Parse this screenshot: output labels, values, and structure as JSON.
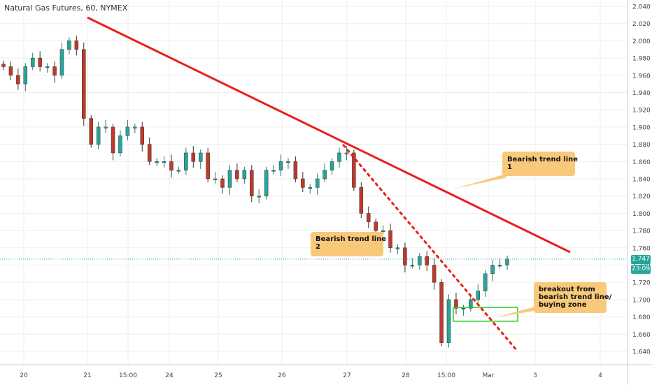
{
  "chart_title": "Natural Gas Futures, 60, NYMEX",
  "last_price_label": "1.747",
  "countdown_label": "23:09",
  "colors": {
    "up": "#26a69a",
    "down": "#ef5350",
    "candle_up_body": "#26a69a",
    "candle_down_body": "#c0392b",
    "trendline": "#e8201c",
    "grid": "#eeeeee",
    "zone": "#22cc22",
    "callout_bg": "#f8c97a"
  },
  "annotations": [
    {
      "id": "trend1",
      "text": "Bearish trend line\n1"
    },
    {
      "id": "trend2",
      "text": "Bearish trend line\n2"
    },
    {
      "id": "breakout",
      "text": "breakout from\nbearish trend line/\nbuying zone"
    }
  ],
  "chart_data": {
    "type": "candlestick",
    "title": "Natural Gas Futures, 60, NYMEX",
    "ylim": [
      1.625,
      2.045
    ],
    "y_ticks": [
      "1.640",
      "1.660",
      "1.680",
      "1.700",
      "1.720",
      "1.740",
      "1.760",
      "1.780",
      "1.800",
      "1.820",
      "1.840",
      "1.860",
      "1.880",
      "1.900",
      "1.920",
      "1.940",
      "1.960",
      "1.980",
      "2.000",
      "2.020",
      "2.040"
    ],
    "x_ticks": [
      "20",
      "21",
      "15:00",
      "24",
      "25",
      "26",
      "27",
      "28",
      "15:00",
      "Mar",
      "3",
      "4"
    ],
    "grid": true,
    "bearish_trend_line_1": {
      "from": {
        "x": "21",
        "y": 2.027
      },
      "to": {
        "x": "between Mar and 3",
        "y": 1.755
      }
    },
    "bearish_trend_line_2": {
      "from": {
        "x": "27",
        "y": 1.879
      },
      "to": {
        "x": "Mar",
        "y": 1.64
      }
    },
    "buying_zone": {
      "y_low": 1.675,
      "y_high": 1.691
    },
    "last_price": 1.747,
    "approx_closes": [
      1.97,
      1.96,
      1.95,
      1.97,
      1.98,
      1.97,
      1.97,
      1.96,
      1.99,
      2.0,
      1.99,
      1.91,
      1.88,
      1.9,
      1.9,
      1.87,
      1.89,
      1.9,
      1.9,
      1.88,
      1.86,
      1.86,
      1.86,
      1.85,
      1.85,
      1.87,
      1.86,
      1.87,
      1.84,
      1.84,
      1.83,
      1.85,
      1.84,
      1.85,
      1.82,
      1.82,
      1.85,
      1.85,
      1.86,
      1.86,
      1.84,
      1.83,
      1.83,
      1.84,
      1.85,
      1.86,
      1.87,
      1.87,
      1.83,
      1.8,
      1.79,
      1.78,
      1.78,
      1.76,
      1.76,
      1.74,
      1.74,
      1.75,
      1.74,
      1.72,
      1.65,
      1.7,
      1.69,
      1.69,
      1.7,
      1.71,
      1.73,
      1.74,
      1.74,
      1.747
    ]
  }
}
